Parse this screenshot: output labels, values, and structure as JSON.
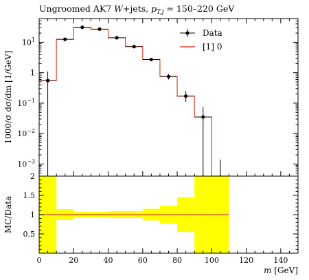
{
  "chart_data": [
    {
      "panel": "main",
      "type": "line",
      "title_parts": [
        "Ungroomed AK7 ",
        "W",
        "+jets, ",
        "p",
        "T,j",
        " = 150–220 GeV"
      ],
      "ylabel": "1000/σ dσ/dm [1/GeV]",
      "y_scale": "log",
      "xlim": [
        0,
        150
      ],
      "ylim": [
        0.0004,
        60
      ],
      "x_ticks": [
        0,
        20,
        40,
        60,
        80,
        100,
        120,
        140
      ],
      "y_ticks": [
        {
          "value": 10,
          "base": "10",
          "exp": "1"
        },
        {
          "value": 1,
          "base": "1",
          "exp": ""
        },
        {
          "value": 0.1,
          "base": "10",
          "exp": "−1"
        },
        {
          "value": 0.01,
          "base": "10",
          "exp": "−2"
        },
        {
          "value": 0.001,
          "base": "10",
          "exp": "−3"
        }
      ],
      "legend": {
        "placement": "top-right",
        "entries": [
          {
            "label": "Data",
            "style": "marker"
          },
          {
            "label": "[1] 0",
            "style": "line"
          }
        ]
      },
      "series": [
        {
          "name": "Data",
          "points": [
            {
              "x": 5,
              "y": 0.55,
              "ylo": 0.0004,
              "yhi": 1.1
            },
            {
              "x": 15,
              "y": 12.5,
              "ylo": 11.5,
              "yhi": 13.5
            },
            {
              "x": 25,
              "y": 31,
              "ylo": 29,
              "yhi": 33
            },
            {
              "x": 35,
              "y": 27,
              "ylo": 25,
              "yhi": 29
            },
            {
              "x": 45,
              "y": 14,
              "ylo": 13,
              "yhi": 15
            },
            {
              "x": 55,
              "y": 7.2,
              "ylo": 6.6,
              "yhi": 7.8
            },
            {
              "x": 65,
              "y": 2.7,
              "ylo": 2.4,
              "yhi": 3.0
            },
            {
              "x": 75,
              "y": 0.75,
              "ylo": 0.6,
              "yhi": 0.9
            },
            {
              "x": 85,
              "y": 0.17,
              "ylo": 0.11,
              "yhi": 0.25
            },
            {
              "x": 95,
              "y": 0.035,
              "ylo": 0.0004,
              "yhi": 0.075
            },
            {
              "x": 105,
              "y": 0.00032,
              "ylo": 0.0004,
              "yhi": 0.0014
            }
          ]
        },
        {
          "name": "[1] 0",
          "color": "#e8402a",
          "edges": [
            0,
            10,
            20,
            30,
            40,
            50,
            60,
            70,
            80,
            90,
            100,
            110
          ],
          "values": [
            0.55,
            12.5,
            31,
            27,
            14,
            7.2,
            2.7,
            0.75,
            0.17,
            0.035,
            0.00032
          ]
        }
      ]
    },
    {
      "panel": "ratio",
      "type": "area",
      "ylabel": "MC/Data",
      "xlabel_parts": [
        "m",
        " [GeV]"
      ],
      "xlim": [
        0,
        150
      ],
      "ylim": [
        0,
        2
      ],
      "x_ticks": [
        0,
        20,
        40,
        60,
        80,
        100,
        120,
        140
      ],
      "y_ticks": [
        0.5,
        1,
        1.5,
        2
      ],
      "band_color": "#ffff00",
      "ratio_line_color": "#e8402a",
      "reference": 1,
      "bands": [
        {
          "x0": 0,
          "x1": 10,
          "lo": 0,
          "hi": 2
        },
        {
          "x0": 10,
          "x1": 20,
          "lo": 0.86,
          "hi": 1.14
        },
        {
          "x0": 20,
          "x1": 30,
          "lo": 0.93,
          "hi": 1.07
        },
        {
          "x0": 30,
          "x1": 40,
          "lo": 0.93,
          "hi": 1.07
        },
        {
          "x0": 40,
          "x1": 50,
          "lo": 0.91,
          "hi": 1.09
        },
        {
          "x0": 50,
          "x1": 60,
          "lo": 0.91,
          "hi": 1.09
        },
        {
          "x0": 60,
          "x1": 70,
          "lo": 0.85,
          "hi": 1.15
        },
        {
          "x0": 70,
          "x1": 80,
          "lo": 0.77,
          "hi": 1.23
        },
        {
          "x0": 80,
          "x1": 90,
          "lo": 0.55,
          "hi": 1.45
        },
        {
          "x0": 90,
          "x1": 100,
          "lo": 0,
          "hi": 2
        },
        {
          "x0": 100,
          "x1": 110,
          "lo": 0,
          "hi": 2
        }
      ]
    }
  ]
}
